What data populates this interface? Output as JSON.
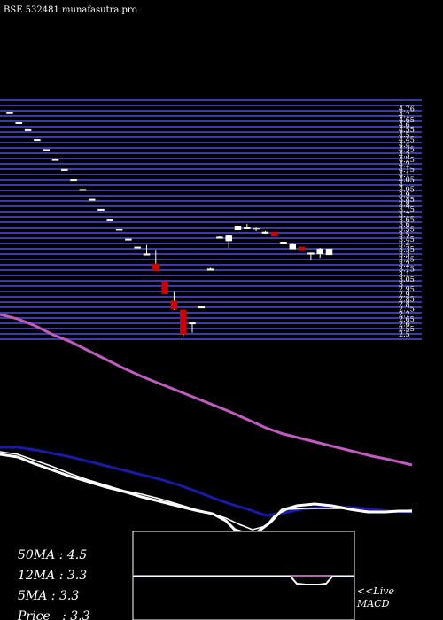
{
  "chart_data": {
    "type": "candlestick",
    "title": "BSE 532481 munafasutra.pro",
    "price_axis": {
      "ylim": [
        2.4,
        4.8
      ],
      "ticks": [
        4.76,
        4.7,
        4.65,
        4.6,
        4.55,
        4.5,
        4.45,
        4.4,
        4.35,
        4.3,
        4.25,
        4.2,
        4.15,
        4.1,
        4.05,
        4.0,
        3.95,
        3.9,
        3.85,
        3.8,
        3.75,
        3.7,
        3.65,
        3.6,
        3.55,
        3.5,
        3.45,
        3.4,
        3.35,
        3.3,
        3.25,
        3.2,
        3.15,
        3.1,
        3.05,
        3.0,
        2.95,
        2.9,
        2.85,
        2.8,
        2.75,
        2.7,
        2.65,
        2.6,
        2.55,
        2.5
      ],
      "tick_labels": [
        "4.76",
        "4.7",
        "4.65",
        "4.6",
        "4.55",
        "4.5",
        "4.45",
        "4.4",
        "4.35",
        "4.3",
        "4.25",
        "4.2",
        "4.15",
        "4.1",
        "4.05",
        "4",
        "3.95",
        "3.9",
        "3.85",
        "3.8",
        "3.75",
        "3.7",
        "3.65",
        "3.6",
        "3.55",
        "3.5",
        "3.45",
        "3.4",
        "3.35",
        "3.3",
        "3.25",
        "3.2",
        "3.15",
        "3.1",
        "3.05",
        "3",
        "2.95",
        "2.9",
        "2.85",
        "2.8",
        "2.75",
        "2.7",
        "2.65",
        "2.6",
        "2.55",
        "2.5"
      ]
    },
    "candles": [
      {
        "o": 4.72,
        "h": 4.72,
        "l": 4.72,
        "c": 4.72
      },
      {
        "o": 4.62,
        "h": 4.62,
        "l": 4.62,
        "c": 4.62
      },
      {
        "o": 4.55,
        "h": 4.55,
        "l": 4.55,
        "c": 4.55
      },
      {
        "o": 4.45,
        "h": 4.45,
        "l": 4.45,
        "c": 4.45
      },
      {
        "o": 4.35,
        "h": 4.35,
        "l": 4.35,
        "c": 4.35
      },
      {
        "o": 4.25,
        "h": 4.25,
        "l": 4.25,
        "c": 4.25
      },
      {
        "o": 4.15,
        "h": 4.15,
        "l": 4.15,
        "c": 4.15
      },
      {
        "o": 4.05,
        "h": 4.05,
        "l": 4.05,
        "c": 4.05
      },
      {
        "o": 3.95,
        "h": 3.95,
        "l": 3.95,
        "c": 3.95
      },
      {
        "o": 3.85,
        "h": 3.85,
        "l": 3.85,
        "c": 3.85
      },
      {
        "o": 3.75,
        "h": 3.75,
        "l": 3.75,
        "c": 3.75
      },
      {
        "o": 3.65,
        "h": 3.65,
        "l": 3.65,
        "c": 3.65
      },
      {
        "o": 3.55,
        "h": 3.55,
        "l": 3.55,
        "c": 3.55
      },
      {
        "o": 3.45,
        "h": 3.45,
        "l": 3.45,
        "c": 3.45
      },
      {
        "o": 3.37,
        "h": 3.37,
        "l": 3.37,
        "c": 3.37
      },
      {
        "o": 3.3,
        "h": 3.39,
        "l": 3.3,
        "c": 3.3
      },
      {
        "o": 3.2,
        "h": 3.34,
        "l": 3.14,
        "c": 3.13
      },
      {
        "o": 3.02,
        "h": 3.02,
        "l": 2.9,
        "c": 2.9
      },
      {
        "o": 2.83,
        "h": 2.92,
        "l": 2.74,
        "c": 2.75
      },
      {
        "o": 2.74,
        "h": 2.74,
        "l": 2.47,
        "c": 2.5
      },
      {
        "o": 2.61,
        "h": 2.61,
        "l": 2.51,
        "c": 2.61
      },
      {
        "o": 2.77,
        "h": 2.77,
        "l": 2.77,
        "c": 2.77
      },
      {
        "o": 3.15,
        "h": 3.16,
        "l": 3.14,
        "c": 3.15
      },
      {
        "o": 3.47,
        "h": 3.48,
        "l": 3.47,
        "c": 3.47
      },
      {
        "o": 3.43,
        "h": 3.49,
        "l": 3.36,
        "c": 3.49
      },
      {
        "o": 3.54,
        "h": 3.58,
        "l": 3.54,
        "c": 3.58
      },
      {
        "o": 3.57,
        "h": 3.6,
        "l": 3.56,
        "c": 3.57
      },
      {
        "o": 3.55,
        "h": 3.57,
        "l": 3.53,
        "c": 3.56
      },
      {
        "o": 3.52,
        "h": 3.53,
        "l": 3.5,
        "c": 3.52
      },
      {
        "o": 3.52,
        "h": 3.52,
        "l": 3.48,
        "c": 3.48
      },
      {
        "o": 3.42,
        "h": 3.42,
        "l": 3.41,
        "c": 3.42
      },
      {
        "o": 3.35,
        "h": 3.41,
        "l": 3.35,
        "c": 3.4
      },
      {
        "o": 3.37,
        "h": 3.37,
        "l": 3.34,
        "c": 3.34
      },
      {
        "o": 3.31,
        "h": 3.31,
        "l": 3.24,
        "c": 3.31
      },
      {
        "o": 3.3,
        "h": 3.36,
        "l": 3.26,
        "c": 3.35
      },
      {
        "o": 3.29,
        "h": 3.35,
        "l": 3.29,
        "c": 3.35
      }
    ],
    "stats": [
      {
        "label": "50MA",
        "sep": " : ",
        "value": "4.5"
      },
      {
        "label": "12MA",
        "sep": " : ",
        "value": "3.3"
      },
      {
        "label": "5MA",
        "sep": " : ",
        "value": "3.3"
      },
      {
        "label": "Price",
        "sep": "   : ",
        "value": "3.3"
      }
    ],
    "macd_label": [
      "<<Live",
      "MACD"
    ]
  },
  "colors": {
    "background": "#000000",
    "gridline": "#3b3ba6",
    "bull": "#ffffff",
    "bear": "#cc0000",
    "ma_long": "#c05cc0",
    "ma_mid": "#1a1aa6",
    "ma_short": "#ffffff",
    "macd_signal": "#c05cc0",
    "macd_line": "#ffffff"
  }
}
